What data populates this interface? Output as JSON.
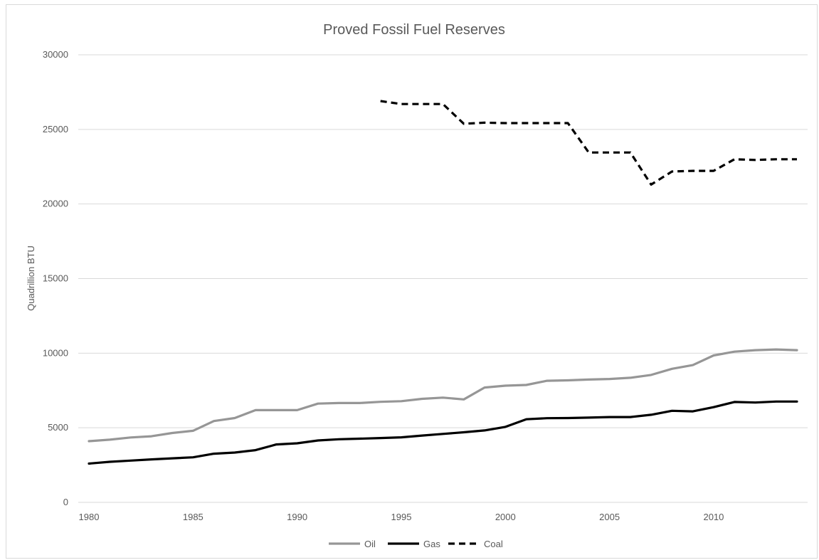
{
  "chart_data": {
    "type": "line",
    "title": "Proved Fossil Fuel Reserves",
    "xlabel": "",
    "ylabel": "Quadrillion BTU",
    "xlim": [
      1980,
      2014
    ],
    "ylim": [
      0,
      30000
    ],
    "x_ticks": [
      1980,
      1985,
      1990,
      1995,
      2000,
      2005,
      2010
    ],
    "y_ticks": [
      0,
      5000,
      10000,
      15000,
      20000,
      25000,
      30000
    ],
    "grid": "horizontal",
    "legend_position": "bottom",
    "series": [
      {
        "name": "Oil",
        "color": "#969696",
        "dash": "solid",
        "x": [
          1980,
          1981,
          1982,
          1983,
          1984,
          1985,
          1986,
          1987,
          1988,
          1989,
          1990,
          1991,
          1992,
          1993,
          1994,
          1995,
          1996,
          1997,
          1998,
          1999,
          2000,
          2001,
          2002,
          2003,
          2004,
          2005,
          2006,
          2007,
          2008,
          2009,
          2010,
          2011,
          2012,
          2013,
          2014
        ],
        "values": [
          4100,
          4200,
          4350,
          4430,
          4650,
          4800,
          5450,
          5650,
          6180,
          6180,
          6180,
          6620,
          6660,
          6660,
          6740,
          6780,
          6940,
          7020,
          6900,
          7700,
          7820,
          7870,
          8150,
          8180,
          8230,
          8270,
          8350,
          8540,
          8950,
          9200,
          9850,
          10100,
          10200,
          10250,
          10200
        ]
      },
      {
        "name": "Gas",
        "color": "#000000",
        "dash": "solid",
        "x": [
          1980,
          1981,
          1982,
          1983,
          1984,
          1985,
          1986,
          1987,
          1988,
          1989,
          1990,
          1991,
          1992,
          1993,
          1994,
          1995,
          1996,
          1997,
          1998,
          1999,
          2000,
          2001,
          2002,
          2003,
          2004,
          2005,
          2006,
          2007,
          2008,
          2009,
          2010,
          2011,
          2012,
          2013,
          2014
        ],
        "values": [
          2600,
          2720,
          2800,
          2880,
          2950,
          3020,
          3260,
          3340,
          3500,
          3880,
          3960,
          4150,
          4230,
          4270,
          4310,
          4360,
          4480,
          4590,
          4700,
          4820,
          5060,
          5570,
          5640,
          5650,
          5680,
          5720,
          5720,
          5870,
          6140,
          6100,
          6380,
          6730,
          6690,
          6760,
          6760
        ]
      },
      {
        "name": "Coal",
        "color": "#000000",
        "dash": "dashed",
        "x": [
          1994,
          1995,
          1996,
          1997,
          1998,
          1999,
          2000,
          2001,
          2002,
          2003,
          2004,
          2005,
          2006,
          2007,
          2008,
          2009,
          2010,
          2011,
          2012,
          2013,
          2014
        ],
        "values": [
          26900,
          26700,
          26700,
          26700,
          25380,
          25450,
          25420,
          25420,
          25420,
          25420,
          23450,
          23450,
          23450,
          21300,
          22180,
          22220,
          22220,
          23000,
          22950,
          23000,
          23000
        ]
      }
    ]
  }
}
